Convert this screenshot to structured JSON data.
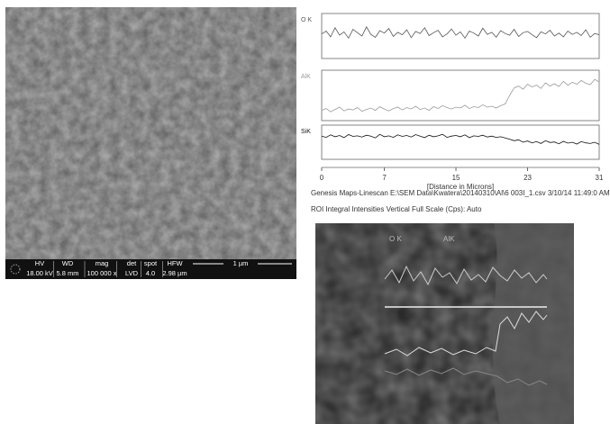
{
  "sem_image": {
    "info_bar": {
      "headers": [
        "HV",
        "WD",
        "mag",
        "det",
        "spot",
        "HFW"
      ],
      "values": [
        "18.00 kV",
        "5.8 mm",
        "100 000 x",
        "LVD",
        "4.0",
        "2.98 µm"
      ],
      "scale_bar": "1 µm"
    }
  },
  "chart_data": [
    {
      "type": "line",
      "title": "O K",
      "color": "#555555",
      "xlim": [
        0,
        31
      ],
      "ylim": [
        0,
        100
      ],
      "x": [
        0,
        0.5,
        1,
        1.5,
        2,
        2.5,
        3,
        3.5,
        4,
        4.5,
        5,
        5.5,
        6,
        6.5,
        7,
        7.5,
        8,
        8.5,
        9,
        9.5,
        10,
        10.5,
        11,
        11.5,
        12,
        12.5,
        13,
        13.5,
        14,
        14.5,
        15,
        15.5,
        16,
        16.5,
        17,
        17.5,
        18,
        18.5,
        19,
        19.5,
        20,
        20.5,
        21,
        21.5,
        22,
        22.5,
        23,
        23.5,
        24,
        24.5,
        25,
        25.5,
        26,
        26.5,
        27,
        27.5,
        28,
        28.5,
        29,
        29.5,
        30,
        30.5,
        31
      ],
      "values": [
        55,
        62,
        48,
        70,
        52,
        60,
        45,
        66,
        58,
        50,
        72,
        54,
        47,
        63,
        57,
        68,
        49,
        59,
        53,
        65,
        46,
        61,
        56,
        70,
        51,
        58,
        64,
        48,
        55,
        67,
        52,
        60,
        45,
        62,
        57,
        50,
        69,
        54,
        59,
        47,
        63,
        56,
        52,
        66,
        49,
        58,
        61,
        53,
        46,
        60,
        55,
        64,
        50,
        57,
        48,
        62,
        54,
        59,
        51,
        65,
        47,
        56,
        53
      ]
    },
    {
      "type": "line",
      "title": "AlK",
      "color": "#9a9a9a",
      "xlim": [
        0,
        31
      ],
      "ylim": [
        0,
        100
      ],
      "x": [
        0,
        0.5,
        1,
        1.5,
        2,
        2.5,
        3,
        3.5,
        4,
        4.5,
        5,
        5.5,
        6,
        6.5,
        7,
        7.5,
        8,
        8.5,
        9,
        9.5,
        10,
        10.5,
        11,
        11.5,
        12,
        12.5,
        13,
        13.5,
        14,
        14.5,
        15,
        15.5,
        16,
        16.5,
        17,
        17.5,
        18,
        18.5,
        19,
        19.5,
        20,
        20.5,
        21,
        21.5,
        22,
        22.5,
        23,
        23.5,
        24,
        24.5,
        25,
        25.5,
        26,
        26.5,
        27,
        27.5,
        28,
        28.5,
        29,
        29.5,
        30,
        30.5,
        31
      ],
      "values": [
        18,
        22,
        15,
        20,
        25,
        17,
        21,
        19,
        24,
        16,
        20,
        23,
        18,
        26,
        21,
        17,
        22,
        25,
        19,
        24,
        21,
        27,
        20,
        23,
        18,
        26,
        22,
        28,
        24,
        21,
        25,
        23,
        29,
        22,
        26,
        24,
        30,
        25,
        27,
        23,
        28,
        32,
        50,
        66,
        70,
        63,
        74,
        68,
        72,
        65,
        77,
        70,
        75,
        69,
        80,
        72,
        78,
        74,
        82,
        76,
        73,
        84,
        79
      ]
    },
    {
      "type": "line",
      "title": "SiK",
      "color": "#111111",
      "xlim": [
        0,
        31
      ],
      "ylim": [
        0,
        100
      ],
      "xticks": [
        0,
        7,
        15,
        23,
        31
      ],
      "xlabel": "[Distance in Microns]",
      "x": [
        0,
        0.5,
        1,
        1.5,
        2,
        2.5,
        3,
        3.5,
        4,
        4.5,
        5,
        5.5,
        6,
        6.5,
        7,
        7.5,
        8,
        8.5,
        9,
        9.5,
        10,
        10.5,
        11,
        11.5,
        12,
        12.5,
        13,
        13.5,
        14,
        14.5,
        15,
        15.5,
        16,
        16.5,
        17,
        17.5,
        18,
        18.5,
        19,
        19.5,
        20,
        20.5,
        21,
        21.5,
        22,
        22.5,
        23,
        23.5,
        24,
        24.5,
        25,
        25.5,
        26,
        26.5,
        27,
        27.5,
        28,
        28.5,
        29,
        29.5,
        30,
        30.5,
        31
      ],
      "values": [
        70,
        66,
        74,
        68,
        72,
        65,
        75,
        69,
        71,
        67,
        73,
        70,
        64,
        76,
        68,
        71,
        66,
        74,
        69,
        72,
        67,
        75,
        70,
        65,
        73,
        68,
        71,
        76,
        66,
        70,
        72,
        68,
        74,
        65,
        71,
        69,
        73,
        67,
        70,
        66,
        68,
        64,
        60,
        55,
        58,
        50,
        54,
        48,
        52,
        46,
        55,
        49,
        51,
        45,
        53,
        47,
        50,
        44,
        52,
        48,
        46,
        50,
        43
      ]
    }
  ],
  "caption": {
    "line1": "Genesis Maps-Linescan E:\\SEM Data\\Kwatera\\20140310\\Al\\6 003I_1.csv  3/10/14 11:49:0 AM",
    "line2": "ROI Integral Intensities   Vertical Full Scale (Cps): Auto"
  },
  "overlay_image": {
    "labels": [
      "O K",
      "AlK"
    ]
  }
}
